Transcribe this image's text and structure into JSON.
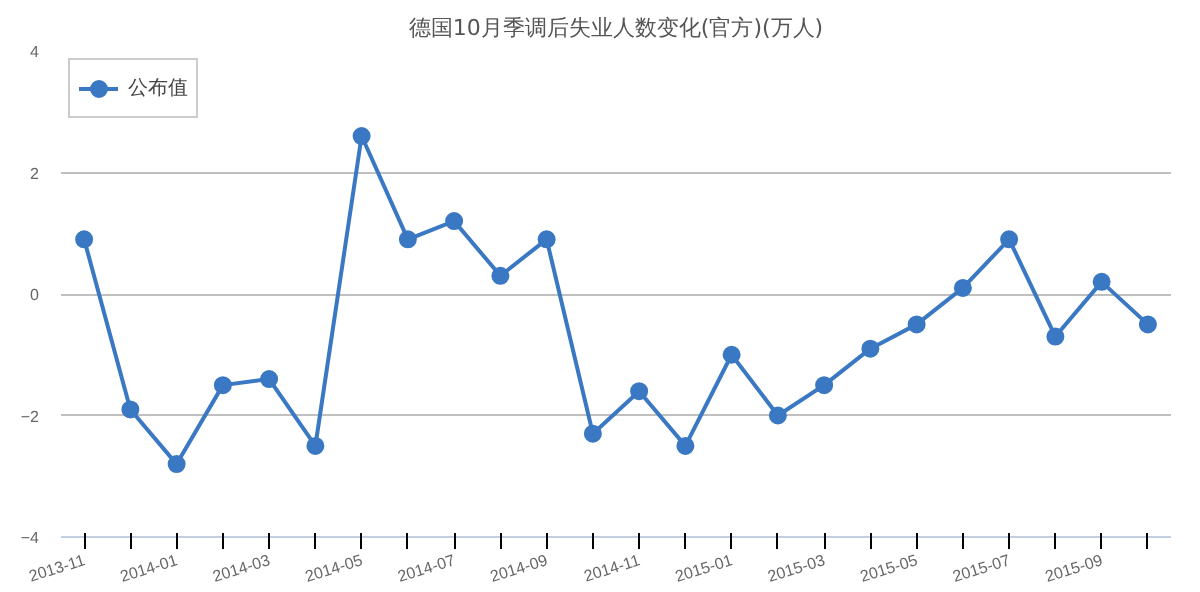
{
  "chart_data": {
    "type": "line",
    "title": "德国10月季调后失业人数变化(官方)(万人)",
    "categories": [
      "2013-11",
      null,
      "2014-01",
      null,
      "2014-03",
      null,
      "2014-05",
      null,
      "2014-07",
      null,
      "2014-09",
      null,
      "2014-11",
      null,
      "2015-01",
      null,
      "2015-03",
      null,
      "2015-05",
      null,
      "2015-07",
      null,
      "2015-09",
      null
    ],
    "series": [
      {
        "name": "公布值",
        "color": "#3a78c3",
        "values": [
          0.9,
          -1.9,
          -2.8,
          -1.5,
          -1.4,
          -2.5,
          2.6,
          0.9,
          1.2,
          0.3,
          0.9,
          -2.3,
          -1.6,
          -2.5,
          -1.0,
          -2.0,
          -1.5,
          -0.9,
          -0.5,
          0.1,
          0.9,
          -0.7,
          0.2,
          -0.5
        ]
      }
    ],
    "ylim": [
      -4,
      4
    ],
    "yticks": [
      -4,
      -2,
      0,
      2,
      4
    ],
    "grid": "y",
    "legend": "top left",
    "marker": "circle",
    "line_style": "solid"
  }
}
